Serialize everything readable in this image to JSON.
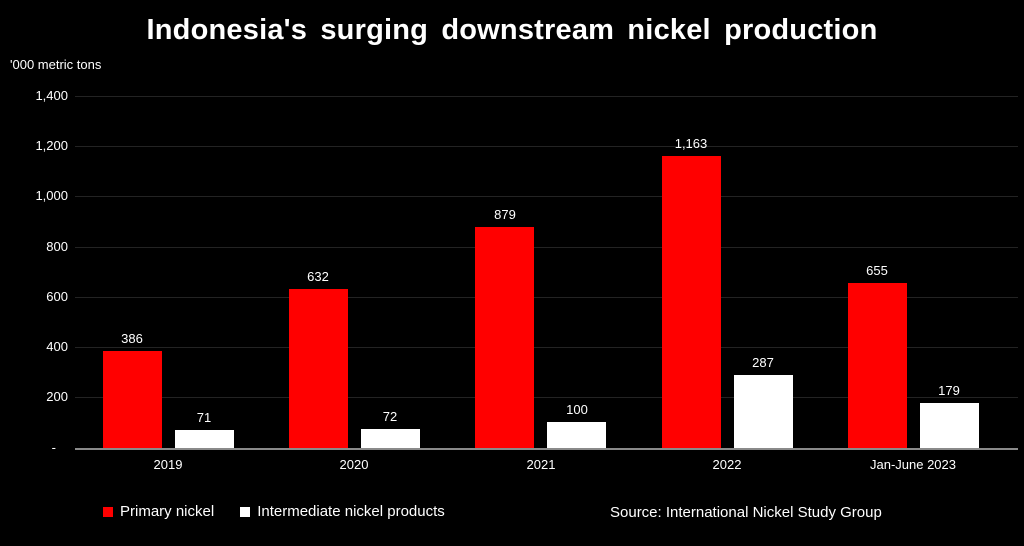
{
  "title": "Indonesia's surging downstream nickel production",
  "units_label": "'000 metric tons",
  "source": "Source: International Nickel Study Group",
  "legend": [
    {
      "label": "Primary nickel",
      "color": "#ff0000"
    },
    {
      "label": "Intermediate nickel products",
      "color": "#ffffff"
    }
  ],
  "colors": {
    "background": "#000000",
    "bar_primary": "#ff0000",
    "bar_intermediate": "#ffffff",
    "gridline": "#232323",
    "axis_line": "#8a8a8a",
    "text": "#ffffff"
  },
  "chart_data": {
    "type": "bar",
    "title": "Indonesia's surging downstream nickel production",
    "ylabel": "'000 metric tons",
    "xlabel": "",
    "categories": [
      "2019",
      "2020",
      "2021",
      "2022",
      "Jan-June 2023"
    ],
    "series": [
      {
        "name": "Primary nickel",
        "color": "#ff0000",
        "values": [
          386,
          632,
          879,
          1163,
          655
        ],
        "labels": [
          "386",
          "632",
          "879",
          "1,163",
          "655"
        ]
      },
      {
        "name": "Intermediate nickel products",
        "color": "#ffffff",
        "values": [
          71,
          72,
          100,
          287,
          179
        ],
        "labels": [
          "71",
          "72",
          "100",
          "287",
          "179"
        ]
      }
    ],
    "ylim": [
      0,
      1400
    ],
    "ytick_interval": 200,
    "ytick_labels": [
      "-",
      "200",
      "400",
      "600",
      "800",
      "1,000",
      "1,200",
      "1,400"
    ],
    "grid": true,
    "legend_position": "bottom"
  }
}
